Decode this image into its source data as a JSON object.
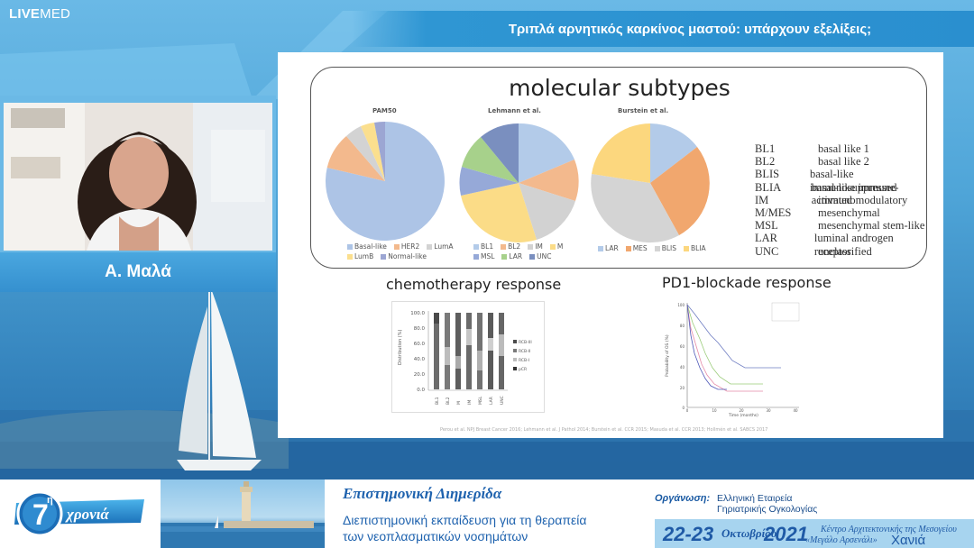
{
  "logo": {
    "bold": "LIVE",
    "thin": "MED"
  },
  "header": {
    "title": "Τριπλά αρνητικός καρκίνος μαστού: υπάρχουν εξελίξεις;"
  },
  "speaker": {
    "name": "Α. Μαλά"
  },
  "slide": {
    "panel_title": "molecular subtypes",
    "pies": [
      {
        "label": "PAM50",
        "legend": [
          "Basal-like",
          "HER2",
          "LumA",
          "LumB",
          "Normal-like"
        ]
      },
      {
        "label": "Lehmann et al.",
        "legend": [
          "BL1",
          "BL2",
          "IM",
          "M",
          "MSL",
          "LAR",
          "UNC"
        ]
      },
      {
        "label": "Burstein et al.",
        "legend": [
          "LAR",
          "MES",
          "BLIS",
          "BLIA"
        ]
      }
    ],
    "abbreviations": [
      {
        "key": "BL1",
        "value": "basal like 1"
      },
      {
        "key": "BL2",
        "value": "basal like 2"
      },
      {
        "key": "BLIS",
        "value": "basal-like immunosuppressed"
      },
      {
        "key": "BLIA",
        "value": "basal-like immune-activated"
      },
      {
        "key": "IM",
        "value": "immunomodulatory"
      },
      {
        "key": "M/MES",
        "value": "mesenchymal"
      },
      {
        "key": "MSL",
        "value": "mesenchymal stem-like"
      },
      {
        "key": "LAR",
        "value": "luminal androgen receptor"
      },
      {
        "key": "UNC",
        "value": "unclassified"
      }
    ],
    "chemo_title": "chemotherapy response",
    "pd1_title": "PD1-blockade response",
    "chemo_chart": {
      "yticks": [
        "100.0",
        "80.0",
        "60.0",
        "40.0",
        "20.0",
        "0.0"
      ],
      "ylabel": "Distribution (%)",
      "categories": [
        "BL1",
        "BL2",
        "M",
        "IM",
        "MSL",
        "LAR",
        "UNC"
      ],
      "legend": [
        "RCB-III",
        "RCB-II",
        "RCB-I",
        "pCR"
      ]
    },
    "pd1_chart": {
      "ylabel": "Probability of OS (%)",
      "xlabel": "Time (months)",
      "yticks": [
        "100",
        "80",
        "60",
        "40",
        "20",
        "0"
      ],
      "xticks": [
        "0",
        "10",
        "20",
        "30",
        "40"
      ]
    },
    "references": "Perou et al. NPJ Breast Cancer 2016; Lehmann et al. J Pathol 2014; Burstein et al. CCR 2015; Masuda et al. CCR 2013; Hollmén et al. SABCS 2017"
  },
  "footer": {
    "badge_number": "7",
    "badge_sup": "η",
    "badge_word": "χρονιά",
    "event_title": "Επιστημονική Διημερίδα",
    "event_line1": "Διεπιστημονική εκπαίδευση για τη θεραπεία",
    "event_line2": "των νεοπλασματικών νοσημάτων",
    "org_label": "Οργάνωση:",
    "org_line1": "Ελληνική Εταιρεία",
    "org_line2": "Γηριατρικής Ογκολογίας",
    "date_days": "22-23",
    "date_month": "Οκτωβρίου",
    "date_year": "2021",
    "venue_line1": "Κέντρο Αρχιτεκτονικής της Μεσογείου",
    "venue_line2": "«Μεγάλο Αρσενάλι»",
    "venue_city": "Χανιά"
  }
}
